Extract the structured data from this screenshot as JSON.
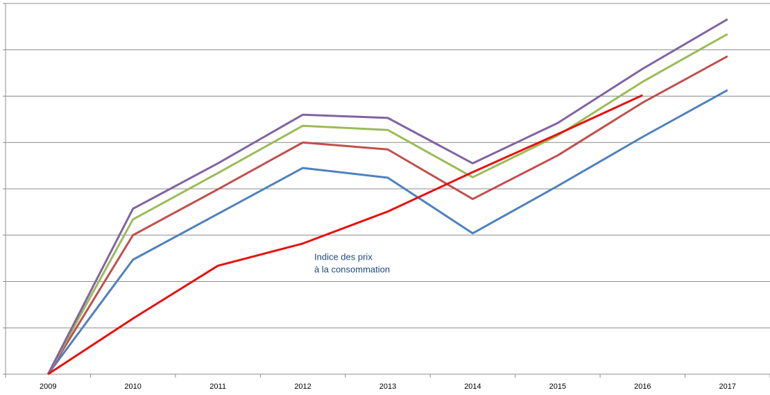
{
  "chart_data": {
    "type": "line",
    "categories": [
      "2009",
      "2010",
      "2011",
      "2012",
      "2013",
      "2014",
      "2015",
      "2016",
      "2017"
    ],
    "series": [
      {
        "color": "#4f81bd",
        "values": [
          0,
          2.47,
          3.46,
          4.45,
          4.24,
          3.04,
          4.06,
          5.12,
          6.13
        ]
      },
      {
        "color": "#c0504d",
        "values": [
          0,
          3.0,
          3.99,
          5.0,
          4.85,
          3.78,
          4.72,
          5.86,
          6.86
        ]
      },
      {
        "color": "#9bbb59",
        "values": [
          0,
          3.34,
          4.34,
          5.36,
          5.27,
          4.25,
          5.15,
          6.31,
          7.34
        ]
      },
      {
        "color": "#8064a2",
        "values": [
          0,
          3.57,
          4.55,
          5.6,
          5.53,
          4.55,
          5.42,
          6.59,
          7.66
        ]
      },
      {
        "color": "#e8100e",
        "values": [
          0,
          1.2,
          2.34,
          2.82,
          3.51,
          4.36,
          5.18,
          6.02,
          null
        ]
      }
    ],
    "annotation": [
      "Indice des prix",
      "à la consommation"
    ],
    "ylim": [
      0,
      8
    ],
    "yticks": [
      0,
      1,
      2,
      3,
      4,
      5,
      6,
      7,
      8
    ],
    "grid": true
  }
}
